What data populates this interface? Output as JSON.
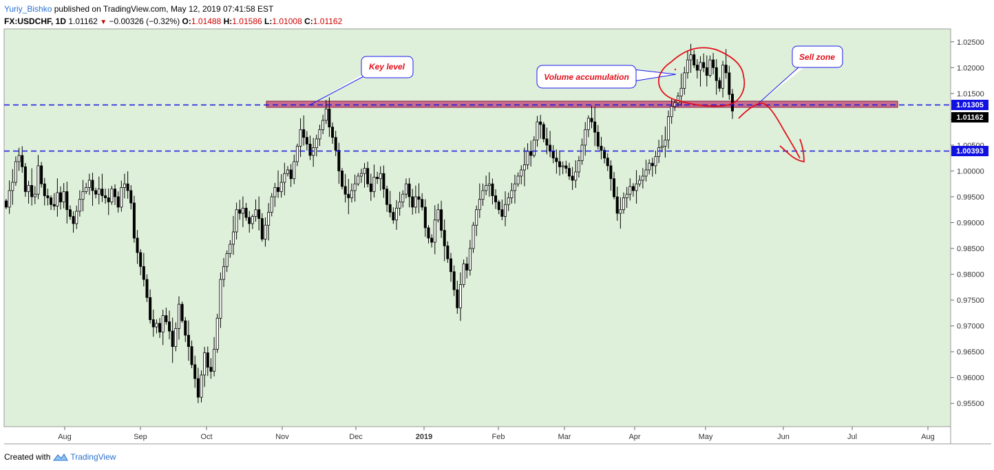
{
  "header": {
    "author": "Yuriy_Bishko",
    "published": "published on TradingView.com, May 12, 2019 07:41:58 EST",
    "symbol": "FX:USDCHF, 1D",
    "last": "1.01162",
    "change": "−0.00326 (−0.32%)",
    "o_label": "O:",
    "o_value": "1.01488",
    "h_label": "H:",
    "h_value": "1.01586",
    "l_label": "L:",
    "l_value": "1.01008",
    "c_label": "C:",
    "c_value": "1.01162"
  },
  "footer": {
    "created_with": "Created with",
    "brand": "TradingView"
  },
  "colors": {
    "background": "#dff0da",
    "candle": "#000000",
    "dashed_line": "#1010e0",
    "zone_fill": "#c96d8c",
    "zone_stroke": "#8b1a3a",
    "annotation_text": "#e0101b",
    "drawing_red": "#e0101b",
    "callout_border": "#1a1af0",
    "price_tag_blue": "#1010e0",
    "price_tag_black": "#000000"
  },
  "annotations": {
    "key_level": "Key level",
    "volume_accumulation": "Volume accumulation",
    "sell_zone": "Sell zone"
  },
  "chart_data": {
    "type": "candlestick",
    "ylim": [
      0.9505,
      1.0275
    ],
    "y_ticks": [
      "1.02500",
      "1.02000",
      "1.01500",
      "1.01000",
      "1.00500",
      "1.00000",
      "0.99500",
      "0.99000",
      "0.98500",
      "0.98000",
      "0.97500",
      "0.97000",
      "0.96500",
      "0.96000",
      "0.95500"
    ],
    "x_ticks": [
      "Aug",
      "Sep",
      "Oct",
      "Nov",
      "Dec",
      "2019",
      "Feb",
      "Mar",
      "Apr",
      "May",
      "Jun",
      "Jul",
      "Aug"
    ],
    "x_tick_bold": "2019",
    "horizontal_levels": [
      "1.01305",
      "1.00393"
    ],
    "last_price": "1.01162",
    "closes": [
      0.993,
      0.9962,
      0.9978,
      1.0018,
      1.003,
      1.0008,
      0.996,
      0.9972,
      0.995,
      0.9955,
      1.001,
      0.9975,
      0.9952,
      0.9948,
      0.9935,
      0.9932,
      0.9958,
      0.994,
      0.996,
      0.9925,
      0.9912,
      0.9898,
      0.9922,
      0.9945,
      0.996,
      0.9968,
      0.9982,
      0.9962,
      0.9955,
      0.9965,
      0.9952,
      0.9948,
      0.994,
      0.9965,
      0.995,
      0.993,
      0.9968,
      0.9975,
      0.9962,
      0.9938,
      0.987,
      0.9842,
      0.9815,
      0.979,
      0.9755,
      0.9712,
      0.9698,
      0.9705,
      0.9688,
      0.972,
      0.9708,
      0.969,
      0.966,
      0.9695,
      0.9742,
      0.971,
      0.9682,
      0.966,
      0.9625,
      0.9598,
      0.9562,
      0.9605,
      0.9648,
      0.962,
      0.9612,
      0.9655,
      0.9715,
      0.979,
      0.9815,
      0.984,
      0.9858,
      0.9882,
      0.9925,
      0.9918,
      0.9928,
      0.991,
      0.9898,
      0.9912,
      0.9925,
      0.9908,
      0.9868,
      0.9895,
      0.992,
      0.995,
      0.9968,
      0.996,
      0.9978,
      0.9995,
      1.0002,
      0.9985,
      1.0018,
      1.0048,
      1.008,
      1.0065,
      1.0052,
      1.003,
      1.0045,
      1.0062,
      1.008,
      1.0098,
      1.012,
      1.0085,
      1.0065,
      1.004,
      1.0,
      0.997,
      0.9955,
      0.9948,
      0.9962,
      0.9975,
      0.999,
      0.9995,
      1.0005,
      0.9975,
      0.996,
      0.9988,
      0.9985,
      0.9995,
      0.9965,
      0.9935,
      0.992,
      0.9905,
      0.9928,
      0.994,
      0.9955,
      0.9975,
      0.995,
      0.993,
      0.995,
      0.9945,
      0.993,
      0.989,
      0.987,
      0.9862,
      0.9905,
      0.9925,
      0.9885,
      0.9855,
      0.983,
      0.9805,
      0.977,
      0.9735,
      0.978,
      0.982,
      0.9808,
      0.985,
      0.9895,
      0.9925,
      0.9945,
      0.9962,
      0.9972,
      0.9975,
      0.9952,
      0.994,
      0.9925,
      0.9912,
      0.9935,
      0.9948,
      0.9962,
      0.9975,
      0.999,
      1.0002,
      1.0012,
      1.0038,
      1.003,
      1.006,
      1.0095,
      1.009,
      1.0062,
      1.005,
      1.0038,
      1.0025,
      1.0018,
      1.0008,
      1.001,
      1.0005,
      0.999,
      0.9982,
      0.9998,
      1.002,
      1.005,
      1.008,
      1.0102,
      1.0095,
      1.0075,
      1.0048,
      1.004,
      1.0025,
      1.001,
      0.9985,
      0.995,
      0.9918,
      0.9925,
      0.9948,
      0.9955,
      0.997,
      0.9962,
      0.9975,
      0.9982,
      0.999,
      1.0002,
      1.0015,
      1.001,
      1.0028,
      1.0045,
      1.0048,
      1.006,
      1.0105,
      1.0125,
      1.0132,
      1.0145,
      1.016,
      1.019,
      1.0215,
      1.0225,
      1.0205,
      1.0195,
      1.021,
      1.02,
      1.0185,
      1.0215,
      1.02,
      1.0175,
      1.016,
      1.0205,
      1.019,
      1.0148,
      1.0116
    ]
  }
}
